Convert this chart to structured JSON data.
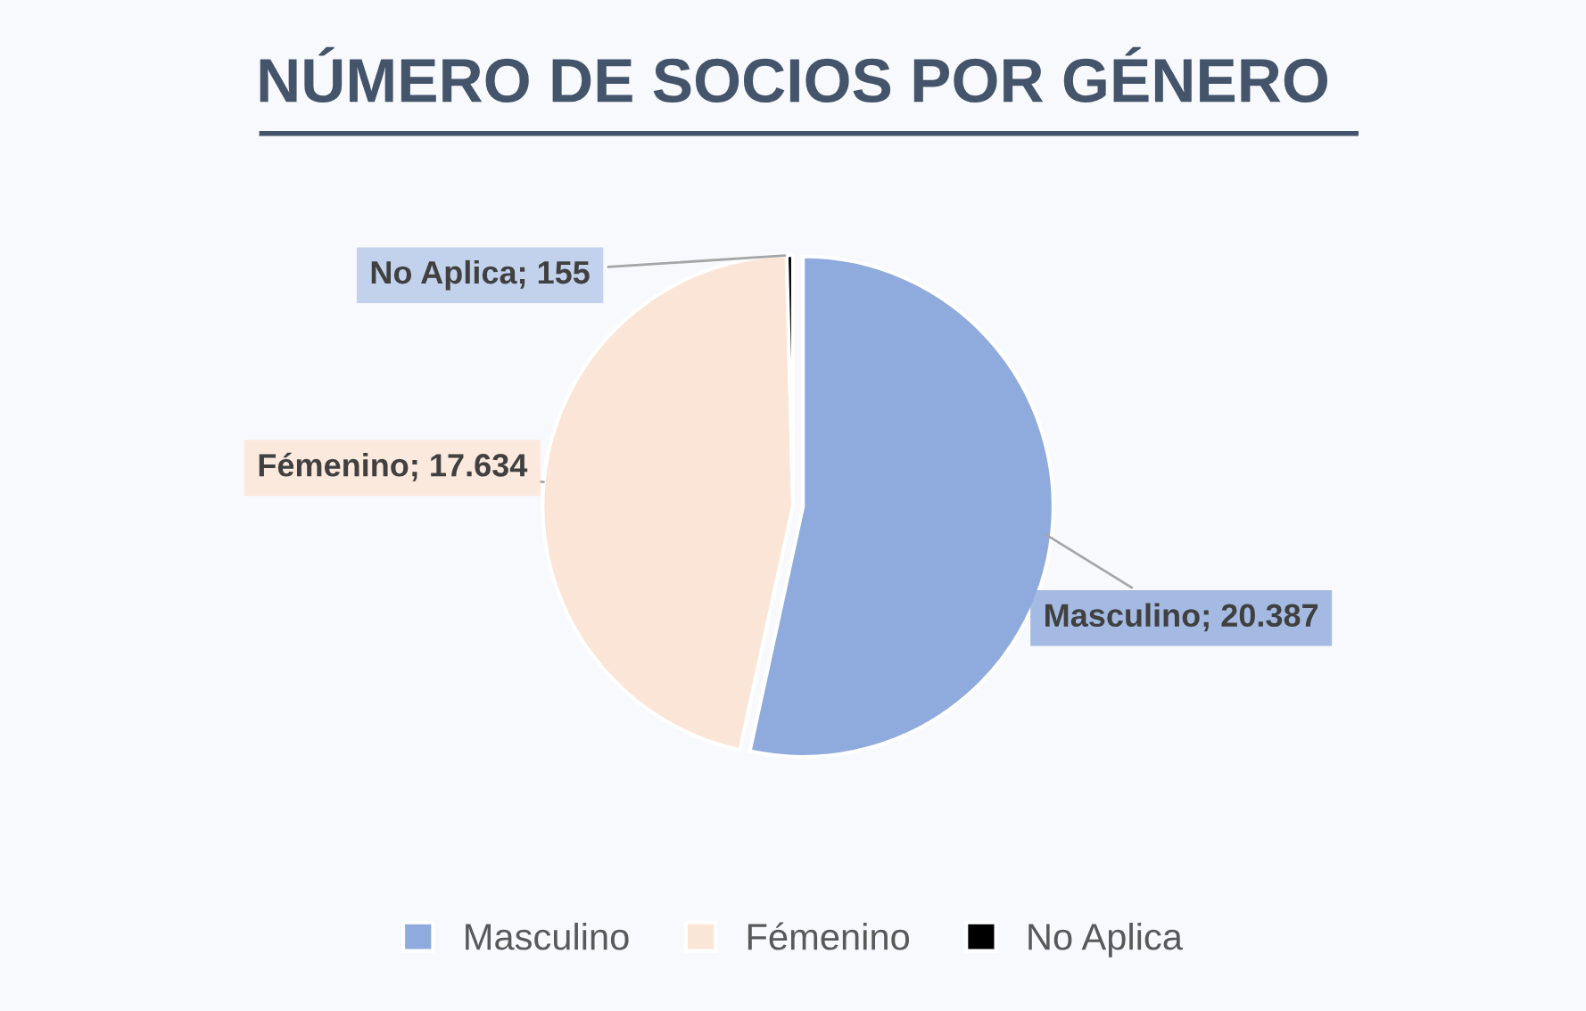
{
  "chart_data": {
    "type": "pie",
    "title": "NÚMERO DE SOCIOS POR GÉNERO",
    "categories": [
      "Masculino",
      "Fémenino",
      "No Aplica"
    ],
    "values": [
      20387,
      17634,
      155
    ],
    "colors": [
      "#8faadc",
      "#fbe5d6",
      "#000000"
    ],
    "value_labels": [
      "Masculino; 20.387",
      "Fémenino; 17.634",
      "No Aplica; 155"
    ],
    "legend": "bottom"
  }
}
